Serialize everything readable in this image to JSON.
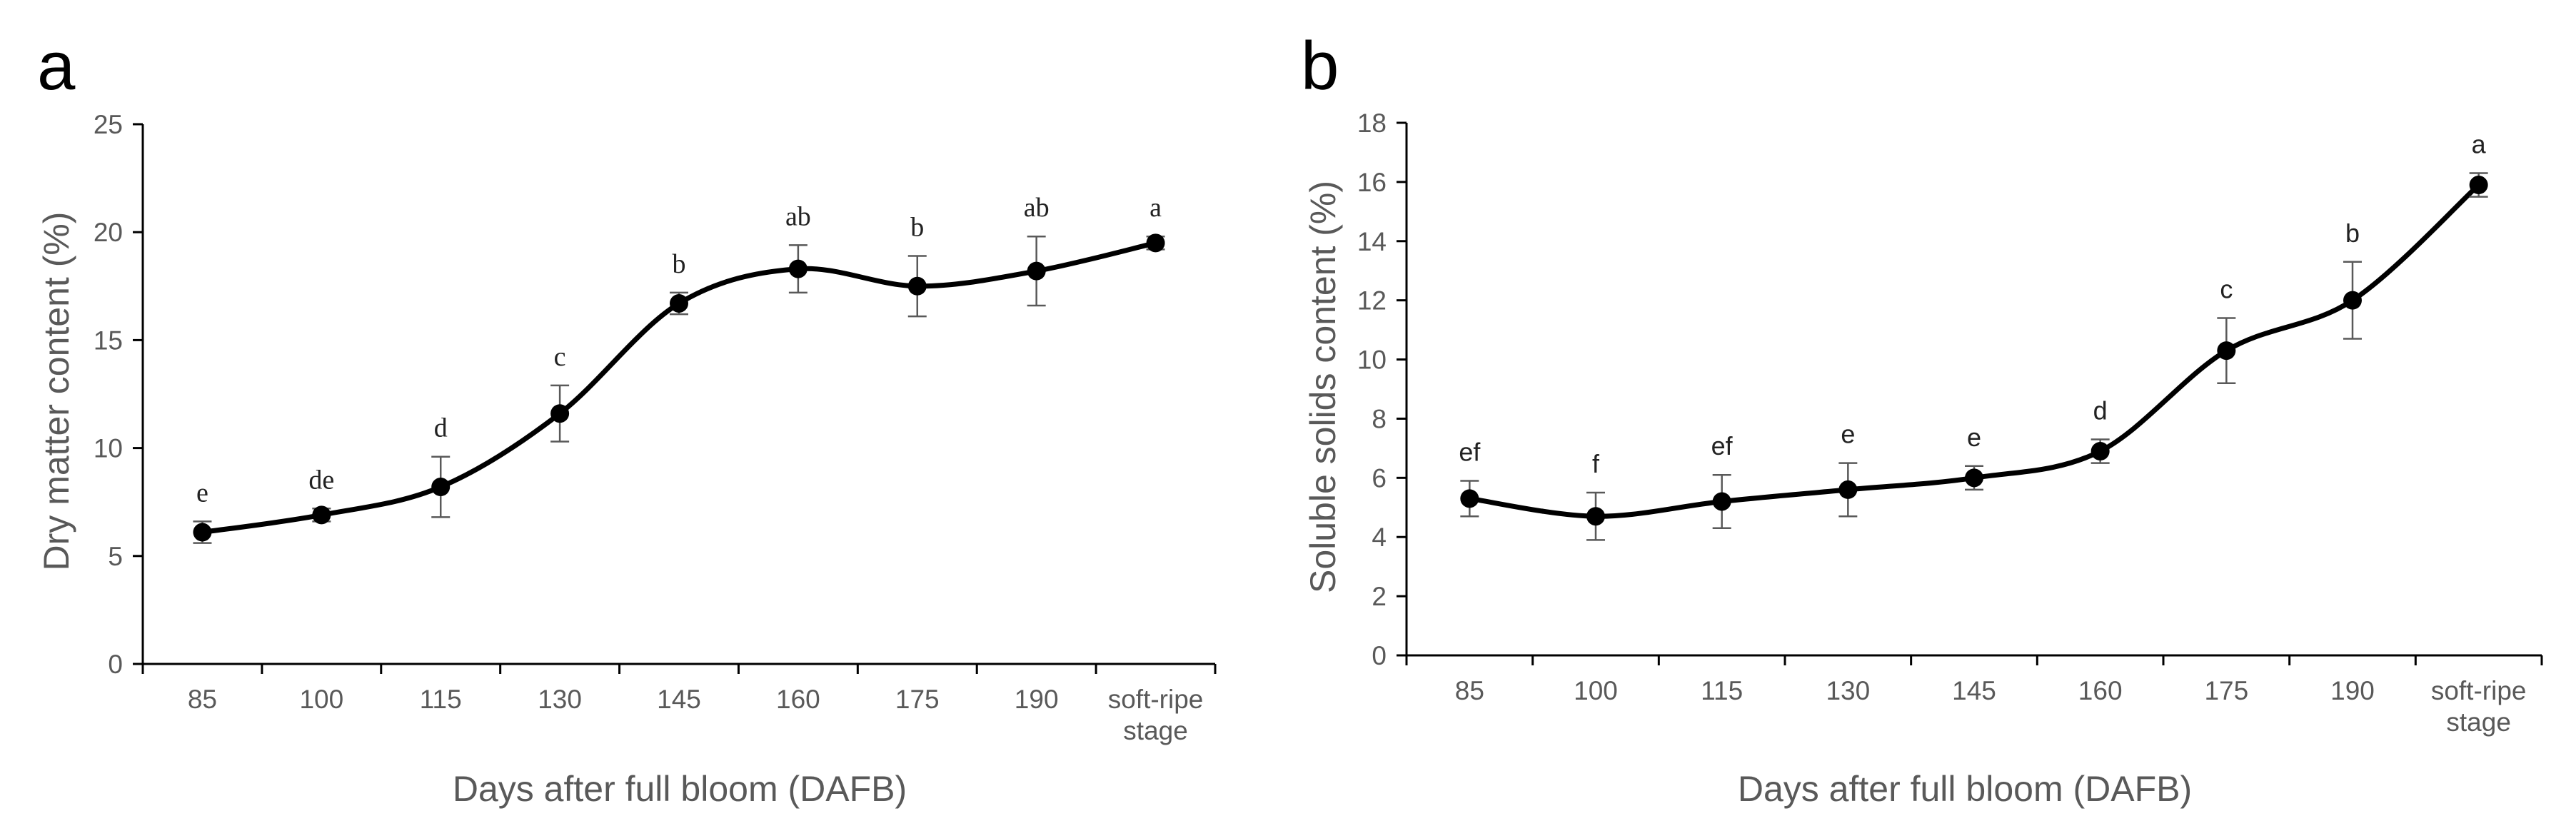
{
  "chart_data": [
    {
      "panel": "a",
      "type": "line",
      "categories": [
        "85",
        "100",
        "115",
        "130",
        "145",
        "160",
        "175",
        "190",
        "soft-ripe stage"
      ],
      "values": [
        6.1,
        6.9,
        8.2,
        11.6,
        16.7,
        18.3,
        17.5,
        18.2,
        19.5
      ],
      "errors": [
        0.5,
        0.3,
        1.4,
        1.3,
        0.5,
        1.1,
        1.4,
        1.6,
        0.3
      ],
      "significance": [
        "e",
        "de",
        "d",
        "c",
        "b",
        "ab",
        "b",
        "ab",
        "a"
      ],
      "ylabel": "Dry matter content (%)",
      "xlabel": "Days after full bloom (DAFB)",
      "ylim": [
        0,
        25
      ],
      "yticks": [
        0,
        5,
        10,
        15,
        20,
        25
      ],
      "grid": false,
      "legend": "none",
      "line_color": "#000000"
    },
    {
      "panel": "b",
      "type": "line",
      "categories": [
        "85",
        "100",
        "115",
        "130",
        "145",
        "160",
        "175",
        "190",
        "soft-ripe stage"
      ],
      "values": [
        5.3,
        4.7,
        5.2,
        5.6,
        6.0,
        6.9,
        10.3,
        12.0,
        15.9
      ],
      "errors": [
        0.6,
        0.8,
        0.9,
        0.9,
        0.4,
        0.4,
        1.1,
        1.3,
        0.4
      ],
      "significance": [
        "ef",
        "f",
        "ef",
        "e",
        "e",
        "d",
        "c",
        "b",
        "a"
      ],
      "ylabel": "Soluble solids content (%)",
      "xlabel": "Days after full bloom (DAFB)",
      "ylim": [
        0,
        18
      ],
      "yticks": [
        0,
        2,
        4,
        6,
        8,
        10,
        12,
        14,
        16,
        18
      ],
      "grid": false,
      "legend": "none",
      "line_color": "#000000"
    }
  ]
}
